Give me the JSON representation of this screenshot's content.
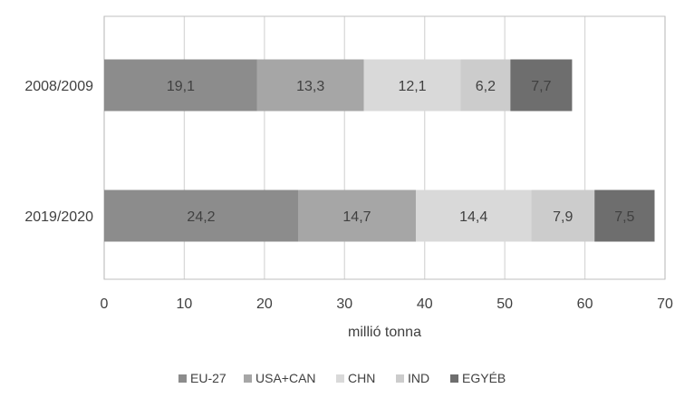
{
  "chart_data": {
    "type": "bar",
    "orientation": "horizontal",
    "stacked": true,
    "categories": [
      "2008/2009",
      "2019/2020"
    ],
    "series": [
      {
        "name": "EU-27",
        "values": [
          19.1,
          24.2
        ],
        "labels": [
          "19,1",
          "24,2"
        ],
        "color": "#8c8c8c"
      },
      {
        "name": "USA+CAN",
        "values": [
          13.3,
          14.7
        ],
        "labels": [
          "13,3",
          "14,7"
        ],
        "color": "#a6a6a6"
      },
      {
        "name": "CHN",
        "values": [
          12.1,
          14.4
        ],
        "labels": [
          "12,1",
          "14,4"
        ],
        "color": "#d9d9d9"
      },
      {
        "name": "IND",
        "values": [
          6.2,
          7.9
        ],
        "labels": [
          "6,2",
          "7,9"
        ],
        "color": "#cccccc"
      },
      {
        "name": "EGYÉB",
        "values": [
          7.7,
          7.5
        ],
        "labels": [
          "7,7",
          "7,5"
        ],
        "color": "#6e6e6e"
      }
    ],
    "xlabel": "millió tonna",
    "xlim": [
      0,
      70
    ],
    "xticks": [
      0,
      10,
      20,
      30,
      40,
      50,
      60,
      70
    ],
    "grid": true,
    "legend": "bottom",
    "label_color": "#404040",
    "grid_color": "#d9d9d9",
    "border_color": "#bfbfbf"
  }
}
